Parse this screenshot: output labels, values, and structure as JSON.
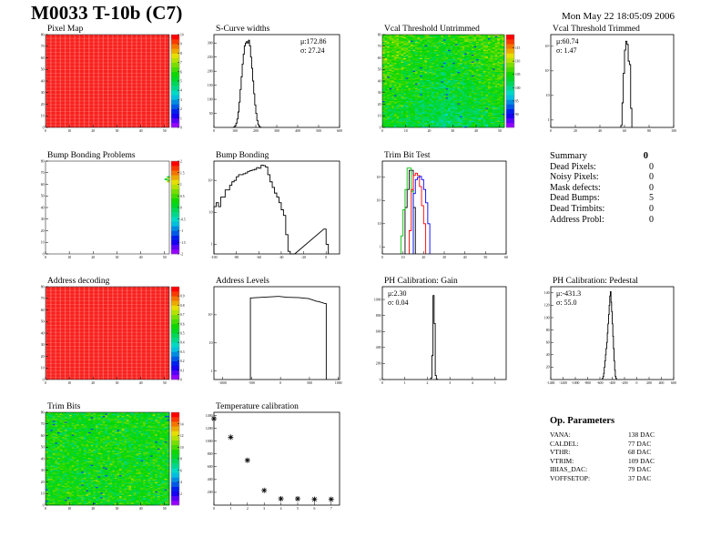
{
  "header": {
    "title": "M0033 T-10b (C7)",
    "date": "Mon May 22 18:05:09 2006"
  },
  "colors": {
    "frame": "#000000",
    "trim_black": "#000000",
    "trim_red": "#ff0000",
    "trim_green": "#00c000",
    "trim_blue": "#0000ff",
    "palette": "rainbow purple-to-red"
  },
  "summary": {
    "title": "Summary",
    "total": "0",
    "rows": [
      {
        "label": "Dead Pixels:",
        "value": "0"
      },
      {
        "label": "Noisy Pixels:",
        "value": "0"
      },
      {
        "label": "Mask defects:",
        "value": "0"
      },
      {
        "label": "Dead Bumps:",
        "value": "5"
      },
      {
        "label": "Dead Trimbits:",
        "value": "0"
      },
      {
        "label": "Address Probl:",
        "value": "0"
      }
    ]
  },
  "params": {
    "title": "Op. Parameters",
    "rows": [
      {
        "label": "VANA:",
        "value": "138 DAC"
      },
      {
        "label": "CALDEL:",
        "value": "77 DAC"
      },
      {
        "label": "VTHR:",
        "value": "68 DAC"
      },
      {
        "label": "VTRIM:",
        "value": "109 DAC"
      },
      {
        "label": "IBIAS_DAC:",
        "value": "79 DAC"
      },
      {
        "label": "VOFFSETOP:",
        "value": "37 DAC"
      }
    ]
  },
  "chart_data": [
    {
      "id": "pixelmap",
      "type": "heatmap",
      "title": "Pixel Map",
      "xlim": [
        0,
        52
      ],
      "ylim": [
        0,
        80
      ],
      "xticks": [
        0,
        10,
        20,
        30,
        40,
        50
      ],
      "yticks": [
        0,
        10,
        20,
        30,
        40,
        50,
        60,
        70,
        80
      ],
      "zlim": [
        0,
        10
      ],
      "zticks": [
        0,
        1,
        2,
        3,
        4,
        5,
        6,
        7,
        8,
        9,
        10
      ],
      "uniform_value": 10
    },
    {
      "id": "scurve",
      "type": "bar",
      "title": "S-Curve widths",
      "stats": {
        "mean": "μ:172.86",
        "sigma": "σ: 27.24"
      },
      "xlim": [
        0,
        600
      ],
      "ylim": [
        0,
        330
      ],
      "xticks": [
        0,
        100,
        200,
        300,
        400,
        500,
        600
      ],
      "yticks": [
        50,
        100,
        150,
        200,
        250,
        300
      ],
      "bin_width": 5,
      "x": [
        95,
        100,
        105,
        110,
        115,
        120,
        125,
        130,
        135,
        140,
        145,
        150,
        155,
        160,
        165,
        170,
        175,
        180,
        185,
        190,
        195,
        200,
        205,
        210,
        215,
        220
      ],
      "values": [
        2,
        5,
        15,
        30,
        55,
        90,
        135,
        180,
        225,
        260,
        290,
        300,
        305,
        300,
        310,
        290,
        250,
        210,
        165,
        120,
        80,
        50,
        25,
        10,
        4,
        1
      ]
    },
    {
      "id": "vcal_untrimmed",
      "type": "heatmap",
      "title": "Vcal Threshold Untrimmed",
      "xlim": [
        0,
        52
      ],
      "ylim": [
        0,
        80
      ],
      "xticks": [
        0,
        10,
        20,
        30,
        40,
        50
      ],
      "yticks": [
        0,
        10,
        20,
        30,
        40,
        50,
        60,
        70,
        80
      ],
      "zlim": [
        85,
        120
      ],
      "zticks": [
        90,
        95,
        100,
        105,
        110,
        115
      ],
      "typical_value": 103
    },
    {
      "id": "vcal_trimmed",
      "type": "bar",
      "title": "Vcal Threshold Trimmed",
      "stats": {
        "mean": "μ:60.74",
        "sigma": "σ: 1.47"
      },
      "log_y": true,
      "xlim": [
        0,
        100
      ],
      "ylim": [
        0.5,
        3000
      ],
      "xticks": [
        0,
        20,
        40,
        60,
        80,
        100
      ],
      "yticks": [
        1,
        10,
        100,
        1000
      ],
      "bin_width": 1,
      "x": [
        57,
        58,
        59,
        60,
        61,
        62,
        63,
        64,
        65
      ],
      "values": [
        0.6,
        5,
        80,
        700,
        1600,
        1200,
        250,
        180,
        3
      ]
    },
    {
      "id": "bump_problems",
      "type": "heatmap",
      "title": "Bump Bonding Problems",
      "xlim": [
        0,
        52
      ],
      "ylim": [
        0,
        80
      ],
      "xticks": [
        0,
        10,
        20,
        30,
        40,
        50
      ],
      "yticks": [
        0,
        10,
        20,
        30,
        40,
        50,
        60,
        70,
        80
      ],
      "zlim": [
        -2,
        2
      ],
      "zticks": [
        -2,
        -1.5,
        -1,
        -0.5,
        0,
        0.5,
        1,
        1.5,
        2
      ],
      "cells": [
        {
          "x": 51,
          "y": 66,
          "z": 0
        },
        {
          "x": 51,
          "y": 65,
          "z": 1
        },
        {
          "x": 51,
          "y": 63,
          "z": 0.5
        },
        {
          "x": 51,
          "y": 62,
          "z": 1
        },
        {
          "x": 50,
          "y": 64,
          "z": 0
        }
      ]
    },
    {
      "id": "bump_bonding",
      "type": "bar",
      "title": "Bump Bonding",
      "log_y": true,
      "xlim": [
        -100,
        12
      ],
      "ylim": [
        0.5,
        400
      ],
      "xticks": [
        -100,
        -80,
        -60,
        -40,
        -20,
        0
      ],
      "yticks": [
        1,
        10,
        100
      ],
      "bin_width": 2,
      "x": [
        -100,
        -98,
        -96,
        -94,
        -92,
        -90,
        -88,
        -86,
        -84,
        -82,
        -80,
        -78,
        -76,
        -74,
        -72,
        -70,
        -68,
        -66,
        -64,
        -62,
        -60,
        -58,
        -56,
        -54,
        -52,
        -50,
        -48,
        -46,
        -44,
        -42,
        -40,
        -38,
        -36,
        -34,
        -32,
        -30,
        -2,
        0
      ],
      "values": [
        15,
        20,
        15,
        30,
        30,
        50,
        50,
        70,
        90,
        100,
        130,
        150,
        150,
        160,
        170,
        190,
        200,
        210,
        220,
        250,
        240,
        300,
        290,
        260,
        150,
        90,
        60,
        40,
        30,
        20,
        12,
        8,
        2,
        0.6,
        0,
        0,
        3,
        1
      ]
    },
    {
      "id": "trim_bit_test",
      "type": "bar",
      "title": "Trim Bit Test",
      "log_y": true,
      "xlim": [
        0,
        60
      ],
      "ylim": [
        0.5,
        5000
      ],
      "xticks": [
        0,
        10,
        20,
        30,
        40,
        50,
        60
      ],
      "yticks": [
        1,
        10,
        100,
        1000
      ],
      "bin_width": 1,
      "series": [
        {
          "color": "#000000",
          "x": [
            11,
            12,
            13,
            14,
            15
          ],
          "values": [
            50,
            300,
            2000,
            2000,
            50
          ]
        },
        {
          "color": "#00c000",
          "x": [
            9,
            10,
            11,
            12,
            13,
            14
          ],
          "values": [
            3,
            40,
            300,
            2500,
            2500,
            250
          ]
        },
        {
          "color": "#ff0000",
          "x": [
            13,
            14,
            15,
            16,
            17,
            18,
            19,
            20
          ],
          "values": [
            5,
            300,
            1200,
            1500,
            1200,
            400,
            60,
            10
          ]
        },
        {
          "color": "#0000ff",
          "x": [
            15,
            16,
            17,
            18,
            19,
            20,
            21,
            22
          ],
          "values": [
            200,
            800,
            1000,
            1100,
            800,
            300,
            80,
            10
          ]
        }
      ]
    },
    {
      "id": "address_decoding",
      "type": "heatmap",
      "title": "Address decoding",
      "xlim": [
        0,
        52
      ],
      "ylim": [
        0,
        80
      ],
      "xticks": [
        0,
        10,
        20,
        30,
        40,
        50
      ],
      "yticks": [
        0,
        10,
        20,
        30,
        40,
        50,
        60,
        70,
        80
      ],
      "zlim": [
        0,
        1
      ],
      "zticks": [
        0,
        0.1,
        0.2,
        0.3,
        0.4,
        0.5,
        0.6,
        0.7,
        0.8,
        0.9
      ],
      "uniform_value": 1
    },
    {
      "id": "address_levels",
      "type": "bar",
      "title": "Address Levels",
      "log_y": true,
      "xlim": [
        -1150,
        1020
      ],
      "ylim": [
        0.5,
        1000
      ],
      "xticks": [
        -1000,
        -500,
        0,
        500,
        1000
      ],
      "yticks": [
        1,
        10,
        100
      ],
      "bin_width": 20,
      "x": [
        -520,
        -45,
        120,
        290,
        460,
        630,
        770
      ],
      "values": [
        400,
        450,
        420,
        410,
        380,
        300,
        250
      ]
    },
    {
      "id": "ph_gain",
      "type": "bar",
      "title": "PH Calibration: Gain",
      "stats": {
        "mean": "μ:2.30",
        "sigma": "σ: 0.04"
      },
      "xlim": [
        0,
        5.5
      ],
      "ylim": [
        0,
        1160
      ],
      "xticks": [
        0,
        1,
        2,
        3,
        4,
        5
      ],
      "yticks": [
        0,
        200,
        400,
        600,
        800,
        1000
      ],
      "bin_width": 0.05,
      "x": [
        2.15,
        2.2,
        2.25,
        2.3,
        2.35,
        2.4
      ],
      "values": [
        20,
        300,
        1050,
        700,
        50,
        5
      ]
    },
    {
      "id": "ph_pedestal",
      "type": "bar",
      "title": "PH Calibration: Pedestal",
      "stats": {
        "mean": "μ:-431.3",
        "sigma": "σ: 55.0"
      },
      "xlim": [
        -1400,
        600
      ],
      "ylim": [
        0,
        150
      ],
      "xticks": [
        -1400,
        -1200,
        -1000,
        -800,
        -600,
        -400,
        -200,
        0,
        200,
        400,
        600
      ],
      "yticks": [
        20,
        40,
        60,
        80,
        100,
        120,
        140
      ],
      "bin_width": 10,
      "x": [
        -560,
        -550,
        -540,
        -530,
        -520,
        -510,
        -500,
        -490,
        -480,
        -470,
        -460,
        -450,
        -440,
        -430,
        -420,
        -410,
        -400,
        -390,
        -380,
        -370,
        -360,
        -350,
        -340
      ],
      "values": [
        2,
        5,
        10,
        20,
        30,
        40,
        50,
        60,
        75,
        90,
        105,
        120,
        135,
        142,
        125,
        110,
        90,
        70,
        50,
        30,
        15,
        5,
        2
      ]
    },
    {
      "id": "trim_bits",
      "type": "heatmap",
      "title": "Trim Bits",
      "xlim": [
        0,
        52
      ],
      "ylim": [
        0,
        80
      ],
      "xticks": [
        0,
        10,
        20,
        30,
        40,
        50
      ],
      "yticks": [
        0,
        10,
        20,
        30,
        40,
        50,
        60,
        70,
        80
      ],
      "zlim": [
        0,
        16
      ],
      "zticks": [
        2,
        4,
        6,
        8,
        10,
        12,
        14
      ],
      "typical_value": 9
    },
    {
      "id": "temperature",
      "type": "scatter",
      "title": "Temperature calibration",
      "xlim": [
        0,
        7.5
      ],
      "ylim": [
        0,
        1450
      ],
      "xticks": [
        0,
        1,
        2,
        3,
        4,
        5,
        6,
        7
      ],
      "yticks": [
        200,
        400,
        600,
        800,
        1000,
        1200,
        1400
      ],
      "x": [
        0,
        1,
        2,
        3,
        4,
        5,
        6,
        7
      ],
      "values": [
        1350,
        1060,
        700,
        230,
        100,
        100,
        90,
        90
      ]
    }
  ]
}
